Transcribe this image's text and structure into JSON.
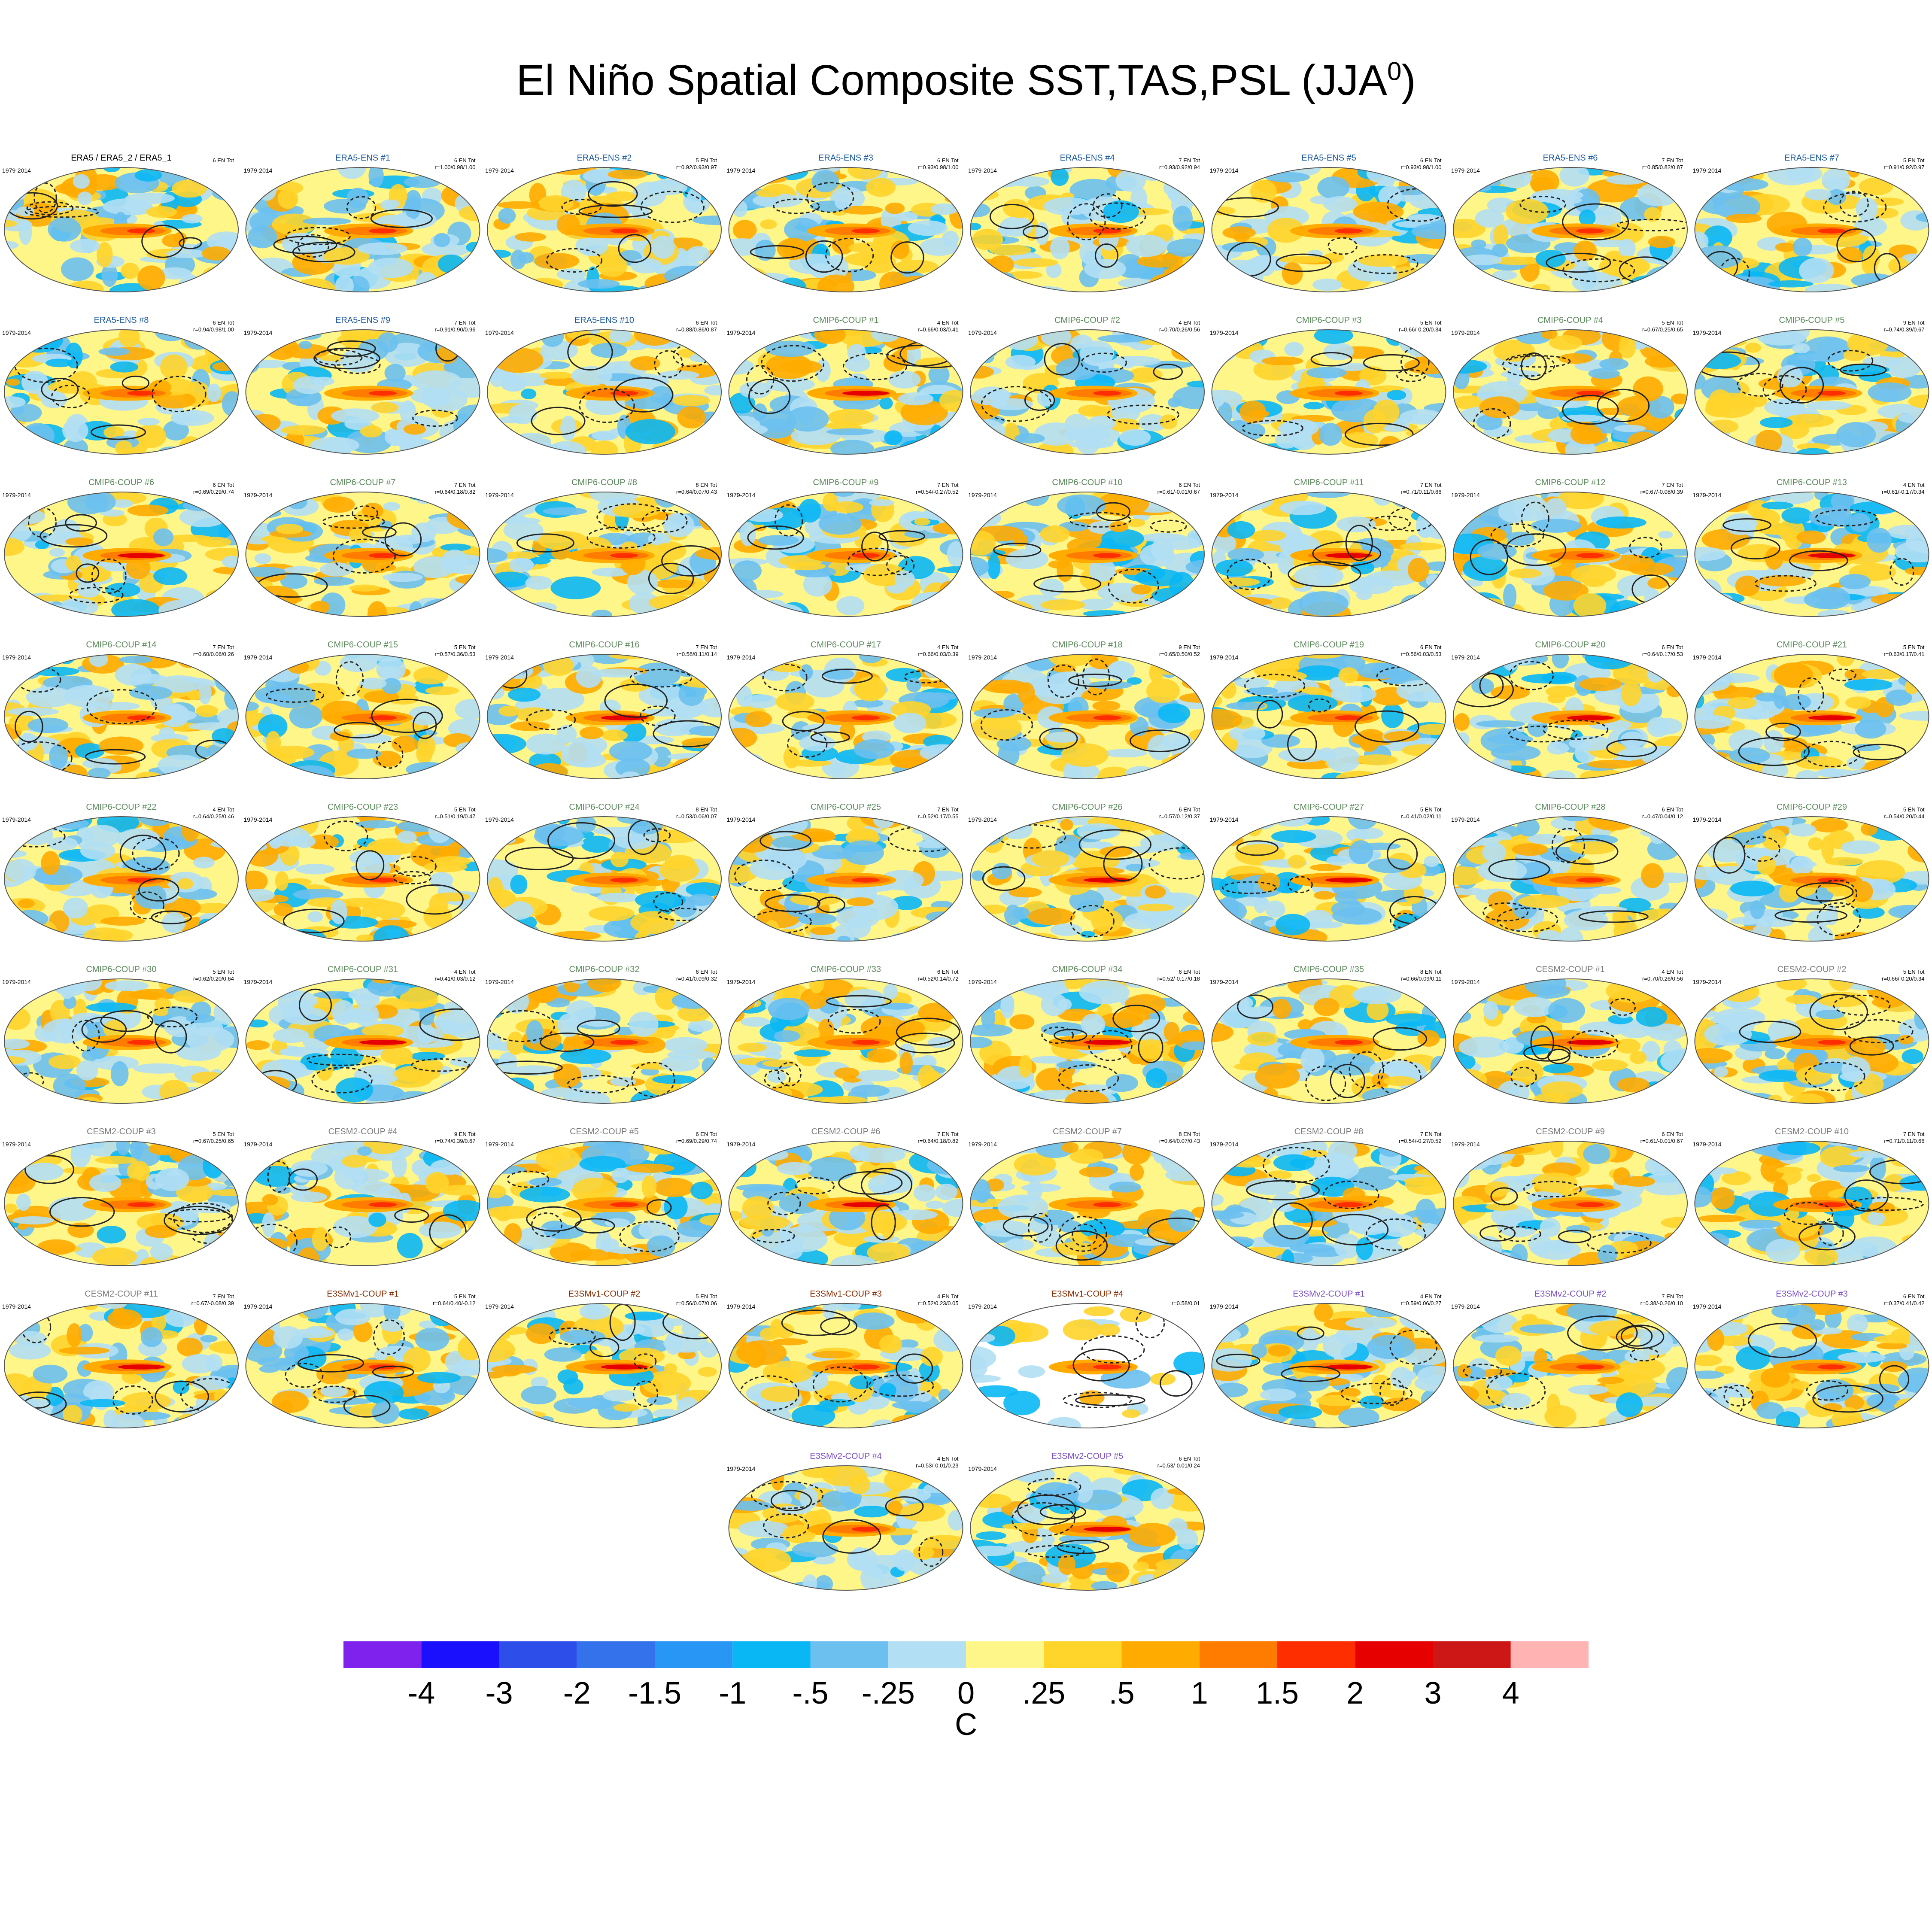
{
  "title": "El Niño Spatial Composite SST,TAS,PSL (JJA",
  "title_superscript": "0",
  "title_suffix": ")",
  "colors": {
    "shading": [
      "#7f22ee",
      "#1a10fe",
      "#2e4eea",
      "#3372ea",
      "#2896f5",
      "#0ab7f5",
      "#6bc0ef",
      "#b3dff4",
      "#fff68a",
      "#ffd42b",
      "#ffab00",
      "#ff7c00",
      "#ff2e00",
      "#e60000",
      "#cd1616",
      "#ffb3b3"
    ],
    "label_obs": "#000000",
    "label_era5ens": "#1a5aa0",
    "label_cmip6": "#5a8a5a",
    "label_cesm2": "#7a7a7a",
    "label_e3smv1": "#8b2a00",
    "label_e3smv2": "#7a4ecc"
  },
  "colorbar": {
    "tick_labels": [
      "-4",
      "-3",
      "-2",
      "-1.5",
      "-1",
      "-.5",
      "-.25",
      "0",
      ".25",
      ".5",
      "1",
      "1.5",
      "2",
      "3",
      "4"
    ],
    "units": "C"
  },
  "chart_data": {
    "type": "heatmap",
    "period": "1979-2014",
    "panels": [
      {
        "name": "ERA5 / ERA5_2 / ERA5_1",
        "group": "obs",
        "events": "6 EN Tot",
        "stats": ""
      },
      {
        "name": "ERA5-ENS  #1",
        "group": "era5ens",
        "events": "6 EN Tot",
        "stats": "r=1.00/0.98/1.00"
      },
      {
        "name": "ERA5-ENS  #2",
        "group": "era5ens",
        "events": "5 EN Tot",
        "stats": "r=0.92/0.93/0.97"
      },
      {
        "name": "ERA5-ENS  #3",
        "group": "era5ens",
        "events": "6 EN Tot",
        "stats": "r=0.93/0.98/1.00"
      },
      {
        "name": "ERA5-ENS  #4",
        "group": "era5ens",
        "events": "7 EN Tot",
        "stats": "r=0.93/0.92/0.94"
      },
      {
        "name": "ERA5-ENS  #5",
        "group": "era5ens",
        "events": "6 EN Tot",
        "stats": "r=0.93/0.98/1.00"
      },
      {
        "name": "ERA5-ENS  #6",
        "group": "era5ens",
        "events": "7 EN Tot",
        "stats": "r=0.85/0.82/0.87"
      },
      {
        "name": "ERA5-ENS  #7",
        "group": "era5ens",
        "events": "5 EN Tot",
        "stats": "r=0.91/0.92/0.97"
      },
      {
        "name": "ERA5-ENS  #8",
        "group": "era5ens",
        "events": "6 EN Tot",
        "stats": "r=0.94/0.98/1.00"
      },
      {
        "name": "ERA5-ENS  #9",
        "group": "era5ens",
        "events": "7 EN Tot",
        "stats": "r=0.91/0.90/0.96"
      },
      {
        "name": "ERA5-ENS  #10",
        "group": "era5ens",
        "events": "6 EN Tot",
        "stats": "r=0.88/0.86/0.87"
      },
      {
        "name": "CMIP6-COUP  #1",
        "group": "cmip6",
        "events": "4 EN Tot",
        "stats": "r=0.66/0.03/0.41"
      },
      {
        "name": "CMIP6-COUP  #2",
        "group": "cmip6",
        "events": "4 EN Tot",
        "stats": "r=0.70/0.26/0.56"
      },
      {
        "name": "CMIP6-COUP  #3",
        "group": "cmip6",
        "events": "5 EN Tot",
        "stats": "r=0.66/-0.20/0.34"
      },
      {
        "name": "CMIP6-COUP  #4",
        "group": "cmip6",
        "events": "5 EN Tot",
        "stats": "r=0.67/0.25/0.65"
      },
      {
        "name": "CMIP6-COUP  #5",
        "group": "cmip6",
        "events": "9 EN Tot",
        "stats": "r=0.74/0.39/0.67"
      },
      {
        "name": "CMIP6-COUP  #6",
        "group": "cmip6",
        "events": "6 EN Tot",
        "stats": "r=0.69/0.29/0.74"
      },
      {
        "name": "CMIP6-COUP  #7",
        "group": "cmip6",
        "events": "7 EN Tot",
        "stats": "r=0.64/0.18/0.82"
      },
      {
        "name": "CMIP6-COUP  #8",
        "group": "cmip6",
        "events": "8 EN Tot",
        "stats": "r=0.64/0.07/0.43"
      },
      {
        "name": "CMIP6-COUP  #9",
        "group": "cmip6",
        "events": "7 EN Tot",
        "stats": "r=0.54/-0.27/0.52"
      },
      {
        "name": "CMIP6-COUP  #10",
        "group": "cmip6",
        "events": "6 EN Tot",
        "stats": "r=0.61/-0.01/0.67"
      },
      {
        "name": "CMIP6-COUP  #11",
        "group": "cmip6",
        "events": "7 EN Tot",
        "stats": "r=0.71/0.11/0.66"
      },
      {
        "name": "CMIP6-COUP  #12",
        "group": "cmip6",
        "events": "7 EN Tot",
        "stats": "r=0.67/-0.08/0.39"
      },
      {
        "name": "CMIP6-COUP  #13",
        "group": "cmip6",
        "events": "4 EN Tot",
        "stats": "r=0.61/-0.17/0.34"
      },
      {
        "name": "CMIP6-COUP  #14",
        "group": "cmip6",
        "events": "7 EN Tot",
        "stats": "r=0.60/0.06/0.26"
      },
      {
        "name": "CMIP6-COUP  #15",
        "group": "cmip6",
        "events": "5 EN Tot",
        "stats": "r=0.57/0.36/0.53"
      },
      {
        "name": "CMIP6-COUP  #16",
        "group": "cmip6",
        "events": "7 EN Tot",
        "stats": "r=0.58/0.11/0.14"
      },
      {
        "name": "CMIP6-COUP  #17",
        "group": "cmip6",
        "events": "4 EN Tot",
        "stats": "r=0.66/0.03/0.39"
      },
      {
        "name": "CMIP6-COUP  #18",
        "group": "cmip6",
        "events": "9 EN Tot",
        "stats": "r=0.65/0.50/0.52"
      },
      {
        "name": "CMIP6-COUP  #19",
        "group": "cmip6",
        "events": "6 EN Tot",
        "stats": "r=0.56/0.03/0.53"
      },
      {
        "name": "CMIP6-COUP  #20",
        "group": "cmip6",
        "events": "6 EN Tot",
        "stats": "r=0.64/0.17/0.53"
      },
      {
        "name": "CMIP6-COUP  #21",
        "group": "cmip6",
        "events": "5 EN Tot",
        "stats": "r=0.63/0.17/0.41"
      },
      {
        "name": "CMIP6-COUP  #22",
        "group": "cmip6",
        "events": "4 EN Tot",
        "stats": "r=0.64/0.25/0.46"
      },
      {
        "name": "CMIP6-COUP  #23",
        "group": "cmip6",
        "events": "5 EN Tot",
        "stats": "r=0.51/0.19/0.47"
      },
      {
        "name": "CMIP6-COUP  #24",
        "group": "cmip6",
        "events": "8 EN Tot",
        "stats": "r=0.53/0.06/0.07"
      },
      {
        "name": "CMIP6-COUP  #25",
        "group": "cmip6",
        "events": "7 EN Tot",
        "stats": "r=0.52/0.17/0.55"
      },
      {
        "name": "CMIP6-COUP  #26",
        "group": "cmip6",
        "events": "6 EN Tot",
        "stats": "r=0.57/0.12/0.37"
      },
      {
        "name": "CMIP6-COUP  #27",
        "group": "cmip6",
        "events": "5 EN Tot",
        "stats": "r=0.41/0.02/0.11"
      },
      {
        "name": "CMIP6-COUP  #28",
        "group": "cmip6",
        "events": "6 EN Tot",
        "stats": "r=0.47/0.04/0.12"
      },
      {
        "name": "CMIP6-COUP  #29",
        "group": "cmip6",
        "events": "5 EN Tot",
        "stats": "r=0.54/0.20/0.44"
      },
      {
        "name": "CMIP6-COUP  #30",
        "group": "cmip6",
        "events": "5 EN Tot",
        "stats": "r=0.62/0.20/0.64"
      },
      {
        "name": "CMIP6-COUP  #31",
        "group": "cmip6",
        "events": "4 EN Tot",
        "stats": "r=0.41/0.03/0.12"
      },
      {
        "name": "CMIP6-COUP  #32",
        "group": "cmip6",
        "events": "6 EN Tot",
        "stats": "r=0.41/0.09/0.32"
      },
      {
        "name": "CMIP6-COUP  #33",
        "group": "cmip6",
        "events": "6 EN Tot",
        "stats": "r=0.52/0.14/0.72"
      },
      {
        "name": "CMIP6-COUP  #34",
        "group": "cmip6",
        "events": "6 EN Tot",
        "stats": "r=0.52/-0.17/0.18"
      },
      {
        "name": "CMIP6-COUP  #35",
        "group": "cmip6",
        "events": "8 EN Tot",
        "stats": "r=0.66/0.09/0.11"
      },
      {
        "name": "CESM2-COUP  #1",
        "group": "cesm2",
        "events": "4 EN Tot",
        "stats": "r=0.70/0.26/0.56"
      },
      {
        "name": "CESM2-COUP  #2",
        "group": "cesm2",
        "events": "5 EN Tot",
        "stats": "r=0.66/-0.20/0.34"
      },
      {
        "name": "CESM2-COUP  #3",
        "group": "cesm2",
        "events": "5 EN Tot",
        "stats": "r=0.67/0.25/0.65"
      },
      {
        "name": "CESM2-COUP  #4",
        "group": "cesm2",
        "events": "9 EN Tot",
        "stats": "r=0.74/0.39/0.67"
      },
      {
        "name": "CESM2-COUP  #5",
        "group": "cesm2",
        "events": "6 EN Tot",
        "stats": "r=0.69/0.29/0.74"
      },
      {
        "name": "CESM2-COUP  #6",
        "group": "cesm2",
        "events": "7 EN Tot",
        "stats": "r=0.64/0.18/0.82"
      },
      {
        "name": "CESM2-COUP  #7",
        "group": "cesm2",
        "events": "8 EN Tot",
        "stats": "r=0.64/0.07/0.43"
      },
      {
        "name": "CESM2-COUP  #8",
        "group": "cesm2",
        "events": "7 EN Tot",
        "stats": "r=0.54/-0.27/0.52"
      },
      {
        "name": "CESM2-COUP  #9",
        "group": "cesm2",
        "events": "6 EN Tot",
        "stats": "r=0.61/-0.01/0.67"
      },
      {
        "name": "CESM2-COUP  #10",
        "group": "cesm2",
        "events": "7 EN Tot",
        "stats": "r=0.71/0.11/0.66"
      },
      {
        "name": "CESM2-COUP  #11",
        "group": "cesm2",
        "events": "7 EN Tot",
        "stats": "r=0.67/-0.08/0.39"
      },
      {
        "name": "E3SMv1-COUP  #1",
        "group": "e3smv1",
        "events": "5 EN Tot",
        "stats": "r=0.64/0.40/-0.12"
      },
      {
        "name": "E3SMv1-COUP  #2",
        "group": "e3smv1",
        "events": "5 EN Tot",
        "stats": "r=0.56/0.07/0.06"
      },
      {
        "name": "E3SMv1-COUP  #3",
        "group": "e3smv1",
        "events": "4 EN Tot",
        "stats": "r=0.52/0.23/0.05"
      },
      {
        "name": "E3SMv1-COUP  #4",
        "group": "e3smv1",
        "events": "",
        "stats": "r=0.58/0.01"
      },
      {
        "name": "E3SMv2-COUP  #1",
        "group": "e3smv2",
        "events": "4 EN Tot",
        "stats": "r=0.59/0.06/0.27"
      },
      {
        "name": "E3SMv2-COUP  #2",
        "group": "e3smv2",
        "events": "7 EN Tot",
        "stats": "r=0.38/-0.26/0.10"
      },
      {
        "name": "E3SMv2-COUP  #3",
        "group": "e3smv2",
        "events": "6 EN Tot",
        "stats": "r=0.37/0.41/0.42"
      },
      {
        "name": "E3SMv2-COUP  #4",
        "group": "e3smv2",
        "events": "4 EN Tot",
        "stats": "r=0.53/-0.01/0.23"
      },
      {
        "name": "E3SMv2-COUP  #5",
        "group": "e3smv2",
        "events": "6 EN Tot",
        "stats": "r=0.53/-0.01/0.24"
      }
    ]
  }
}
